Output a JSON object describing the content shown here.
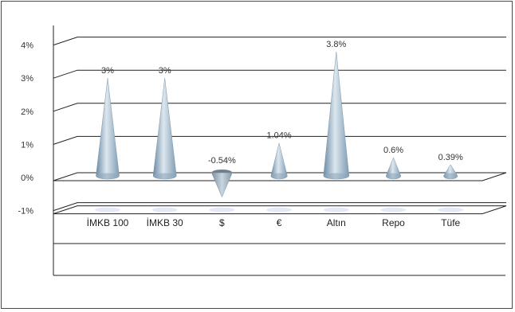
{
  "chart_data": {
    "type": "bar",
    "subtype": "3d-cone",
    "categories": [
      "İMKB 100",
      "İMKB 30",
      "$",
      "€",
      "Altın",
      "Repo",
      "Tüfe"
    ],
    "values": [
      3,
      3,
      -0.54,
      1.04,
      3.8,
      0.6,
      0.39
    ],
    "data_labels": [
      "3%",
      "3%",
      "-0.54%",
      "1.04%",
      "3.8%",
      "0.6%",
      "0.39%"
    ],
    "y_ticks": [
      "4%",
      "3%",
      "2%",
      "1%",
      "0%",
      "-1%"
    ],
    "ylim": [
      -1,
      4
    ],
    "grid": true,
    "legend": "none",
    "colors": {
      "cone_light": "#dce7ef",
      "cone_mid": "#a9bfd0",
      "cone_dark": "#6c8aa3",
      "neg_cone": "#8a9aa8",
      "floor_shadow": "#e3e9f5",
      "grid": "#222222"
    }
  }
}
